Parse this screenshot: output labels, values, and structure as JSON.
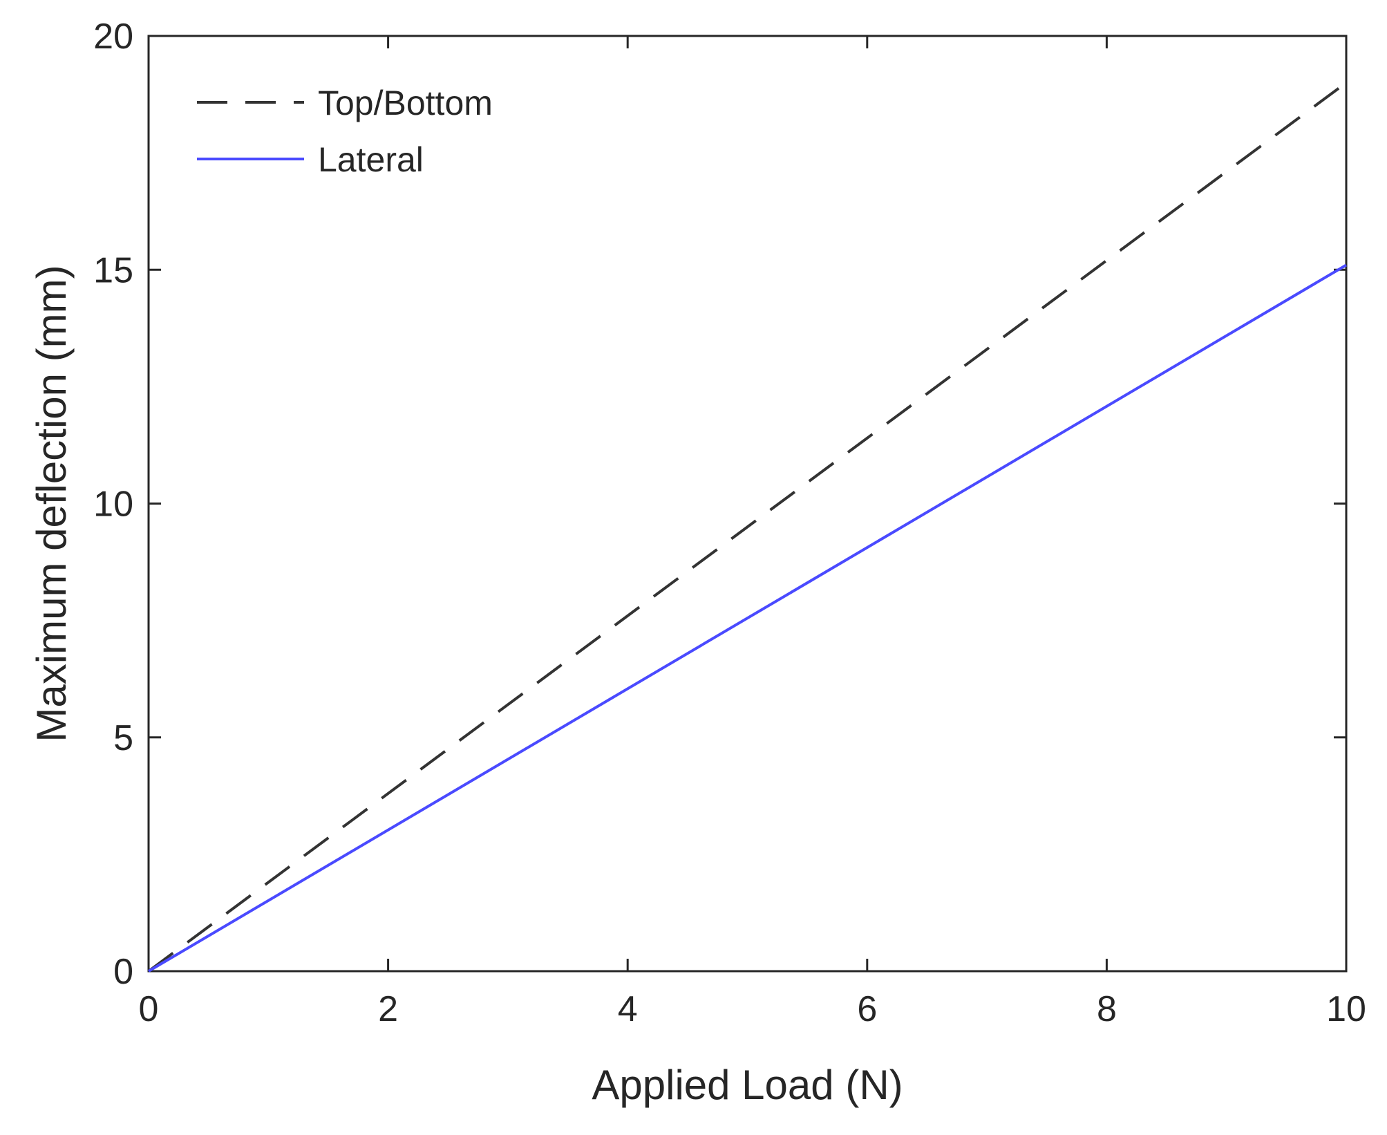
{
  "chart_data": {
    "type": "line",
    "xlabel": "Applied Load (N)",
    "ylabel": "Maximum deflection (mm)",
    "xlim": [
      0,
      10
    ],
    "ylim": [
      0,
      20
    ],
    "x_ticks": [
      "0",
      "2",
      "4",
      "6",
      "8",
      "10"
    ],
    "y_ticks": [
      "0",
      "5",
      "10",
      "15",
      "20"
    ],
    "grid": false,
    "legend_position": "top-left",
    "series": [
      {
        "name": "Top/Bottom",
        "style": "dashed",
        "color": "#000000",
        "x": [
          0,
          10
        ],
        "y": [
          0,
          19
        ]
      },
      {
        "name": "Lateral",
        "style": "solid",
        "color": "#4a4aff",
        "x": [
          0,
          10
        ],
        "y": [
          0,
          15.1
        ]
      }
    ]
  }
}
